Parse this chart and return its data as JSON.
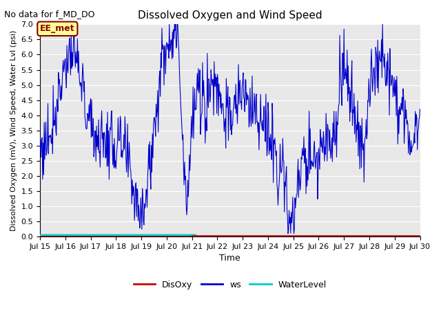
{
  "title": "Dissolved Oxygen and Wind Speed",
  "top_left_text": "No data for f_MD_DO",
  "xlabel": "Time",
  "ylabel": "Dissolved Oxygen (mV), Wind Speed, Water Lvl (psi)",
  "ylim": [
    0.0,
    7.0
  ],
  "yticks": [
    0.0,
    0.5,
    1.0,
    1.5,
    2.0,
    2.5,
    3.0,
    3.5,
    4.0,
    4.5,
    5.0,
    5.5,
    6.0,
    6.5,
    7.0
  ],
  "xlim_start": 0,
  "xlim_end": 360,
  "bg_color": "#e8e8e8",
  "grid_color": "white",
  "ws_color": "#0000cc",
  "disoxy_color": "#cc0000",
  "waterlevel_color": "#00cccc",
  "annotation_text": "EE_met",
  "annotation_box_facecolor": "#ffff99",
  "annotation_box_edgecolor": "#8b0000",
  "x_tick_labels": [
    "Jul 15",
    "Jul 16",
    "Jul 17",
    "Jul 18",
    "Jul 19",
    "Jul 20",
    "Jul 21",
    "Jul 22",
    "Jul 23",
    "Jul 24",
    "Jul 25",
    "Jul 26",
    "Jul 27",
    "Jul 28",
    "Jul 29",
    "Jul 30"
  ],
  "x_tick_positions": [
    0,
    24,
    48,
    72,
    96,
    120,
    144,
    168,
    192,
    216,
    240,
    264,
    288,
    312,
    336,
    360
  ],
  "figsize": [
    6.4,
    4.8
  ],
  "dpi": 100
}
